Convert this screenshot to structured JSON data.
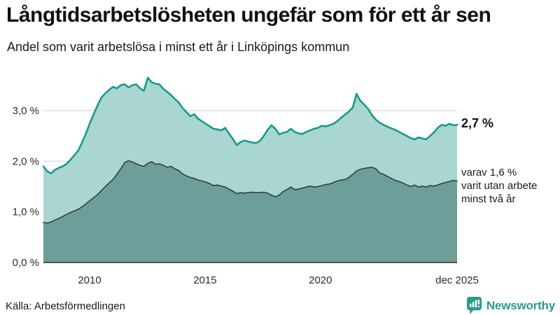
{
  "header": {
    "title": "Långtidsarbetslösheten ungefär som för ett år sen",
    "subtitle": "Andel som varit arbetslösa i minst ett år i Linköpings kommun"
  },
  "chart_data": {
    "type": "area",
    "title": "Långtidsarbetslösheten ungefär som för ett år sen",
    "subtitle": "Andel som varit arbetslösa i minst ett år i Linköpings kommun",
    "x_start": 2008.0,
    "x_end": 2025.92,
    "ylim": [
      0,
      3.8
    ],
    "grid": "horizontal",
    "unit": "%",
    "x_ticks": [
      {
        "x": 2010,
        "label": "2010"
      },
      {
        "x": 2015,
        "label": "2015"
      },
      {
        "x": 2020,
        "label": "2020"
      },
      {
        "x": 2025.92,
        "label": "dec 2025"
      }
    ],
    "y_ticks": [
      {
        "v": 0,
        "label": "0,0 %",
        "grid": false
      },
      {
        "v": 1,
        "label": "1,0 %",
        "grid": true
      },
      {
        "v": 2,
        "label": "2,0 %",
        "grid": true
      },
      {
        "v": 3,
        "label": "3,0 %",
        "grid": true
      }
    ],
    "series": [
      {
        "id": "minst-ett-ar",
        "name": "Arbetslösa minst ett år",
        "color": "#169b8d",
        "fill": "#a0d2cb",
        "last_value": 2.7,
        "values": [
          1.9,
          1.8,
          1.76,
          1.83,
          1.87,
          1.9,
          1.95,
          2.03,
          2.12,
          2.21,
          2.37,
          2.55,
          2.75,
          2.93,
          3.1,
          3.26,
          3.34,
          3.41,
          3.47,
          3.44,
          3.5,
          3.52,
          3.46,
          3.5,
          3.52,
          3.44,
          3.39,
          3.65,
          3.56,
          3.53,
          3.52,
          3.43,
          3.37,
          3.31,
          3.23,
          3.16,
          3.05,
          2.97,
          2.89,
          2.93,
          2.84,
          2.79,
          2.74,
          2.69,
          2.64,
          2.63,
          2.61,
          2.66,
          2.55,
          2.44,
          2.32,
          2.38,
          2.41,
          2.39,
          2.37,
          2.36,
          2.4,
          2.5,
          2.62,
          2.71,
          2.64,
          2.53,
          2.56,
          2.58,
          2.64,
          2.58,
          2.55,
          2.54,
          2.58,
          2.61,
          2.64,
          2.66,
          2.7,
          2.69,
          2.71,
          2.74,
          2.79,
          2.86,
          2.92,
          2.98,
          3.06,
          3.33,
          3.19,
          3.12,
          3.03,
          2.91,
          2.82,
          2.76,
          2.72,
          2.68,
          2.65,
          2.62,
          2.58,
          2.54,
          2.5,
          2.46,
          2.43,
          2.47,
          2.45,
          2.43,
          2.5,
          2.57,
          2.66,
          2.72,
          2.7,
          2.74,
          2.71,
          2.72
        ]
      },
      {
        "id": "minst-tva-ar",
        "name": "Arbetslösa minst två år",
        "color": "#30403d",
        "fill": "#679893",
        "last_value": 1.6,
        "values": [
          0.79,
          0.78,
          0.8,
          0.84,
          0.87,
          0.91,
          0.95,
          0.99,
          1.02,
          1.05,
          1.1,
          1.16,
          1.22,
          1.28,
          1.34,
          1.42,
          1.5,
          1.57,
          1.64,
          1.74,
          1.85,
          1.97,
          2.01,
          1.99,
          1.95,
          1.92,
          1.9,
          1.96,
          1.99,
          1.94,
          1.95,
          1.92,
          1.88,
          1.9,
          1.85,
          1.82,
          1.75,
          1.71,
          1.68,
          1.66,
          1.63,
          1.61,
          1.59,
          1.56,
          1.52,
          1.53,
          1.51,
          1.49,
          1.45,
          1.41,
          1.36,
          1.38,
          1.37,
          1.38,
          1.39,
          1.38,
          1.38,
          1.39,
          1.37,
          1.33,
          1.3,
          1.33,
          1.4,
          1.44,
          1.49,
          1.44,
          1.45,
          1.47,
          1.49,
          1.51,
          1.49,
          1.5,
          1.52,
          1.54,
          1.55,
          1.58,
          1.61,
          1.63,
          1.64,
          1.68,
          1.74,
          1.81,
          1.84,
          1.86,
          1.87,
          1.88,
          1.85,
          1.77,
          1.74,
          1.7,
          1.66,
          1.62,
          1.6,
          1.57,
          1.53,
          1.5,
          1.53,
          1.49,
          1.51,
          1.49,
          1.52,
          1.51,
          1.53,
          1.56,
          1.58,
          1.6,
          1.62,
          1.61
        ]
      }
    ],
    "end_labels": {
      "primary": "2,7 %",
      "secondary": [
        "varav 1,6 %",
        "varit utan arbete",
        "minst två år"
      ]
    }
  },
  "colors": {
    "accent": "#169b8d",
    "fill_light": "#a0d2cb",
    "fill_dark": "#679893",
    "gridline": "#d9d9d9",
    "axis": "#2f2f2f",
    "brand": "#2a9a8c"
  },
  "footer": {
    "source": "Källa: Arbetsförmedlingen",
    "brand": "Newsworthy",
    "brand_color": "#2a9a8c"
  }
}
